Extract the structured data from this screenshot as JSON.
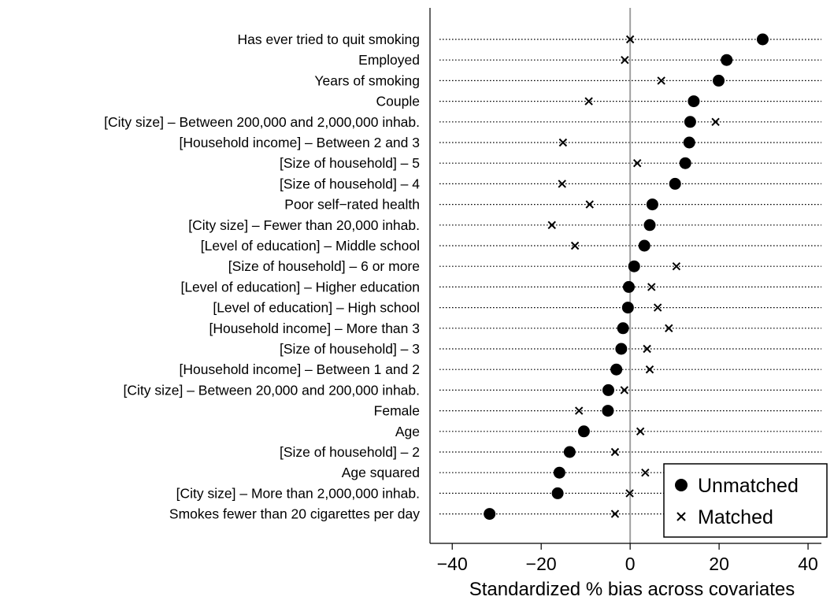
{
  "chart_data": {
    "type": "scatter",
    "title": "",
    "xlabel": "Standardized % bias across covariates",
    "ylabel": "",
    "xlim": [
      -45,
      43
    ],
    "xticks": [
      -40,
      -20,
      0,
      20,
      40
    ],
    "xtick_labels": [
      "−40",
      "−20",
      "0",
      "20",
      "40"
    ],
    "reference_line_x": 0,
    "grid": false,
    "legend_position": "bottom-right",
    "categories": [
      "Has ever tried to quit smoking",
      "Employed",
      "Years of smoking",
      "Couple",
      "[City size] – Between 200,000 and 2,000,000 inhab.",
      "[Household income] – Between 2 and 3",
      "[Size of household] – 5",
      "[Size of household] – 4",
      "Poor self−rated health",
      "[City size] – Fewer than 20,000 inhab.",
      "[Level of education] – Middle school",
      "[Size of household] – 6 or more",
      "[Level of education] – Higher education",
      "[Level of education] – High school",
      "[Household income] – More than 3",
      "[Size of household] – 3",
      "[Household income] – Between 1 and 2",
      "[City size] – Between 20,000 and 200,000 inhab.",
      "Female",
      "Age",
      "[Size of household] – 2",
      "Age squared",
      "[City size] – More than 2,000,000 inhab.",
      "Smokes fewer than 20 cigarettes per day"
    ],
    "series": [
      {
        "name": "Unmatched",
        "marker": "circle",
        "values": [
          29.8,
          21.7,
          19.9,
          14.3,
          13.5,
          13.3,
          12.4,
          10.1,
          5.0,
          4.4,
          3.2,
          0.9,
          -0.3,
          -0.5,
          -1.6,
          -2.0,
          -3.1,
          -4.9,
          -5.0,
          -10.4,
          -13.6,
          -15.9,
          -16.3,
          -31.6
        ]
      },
      {
        "name": "Matched",
        "marker": "x",
        "values": [
          0.0,
          -1.2,
          7.0,
          -9.3,
          19.2,
          -15.1,
          1.6,
          -15.3,
          -9.1,
          -17.6,
          -12.4,
          10.4,
          4.8,
          6.2,
          8.7,
          3.8,
          4.4,
          -1.3,
          -11.5,
          2.3,
          -3.4,
          3.4,
          -0.1,
          -3.4
        ]
      }
    ],
    "colors": {
      "markers": "#000000",
      "reference_line": "#a0a0a0",
      "dotted_line": "#000000",
      "background": "#ffffff"
    }
  }
}
